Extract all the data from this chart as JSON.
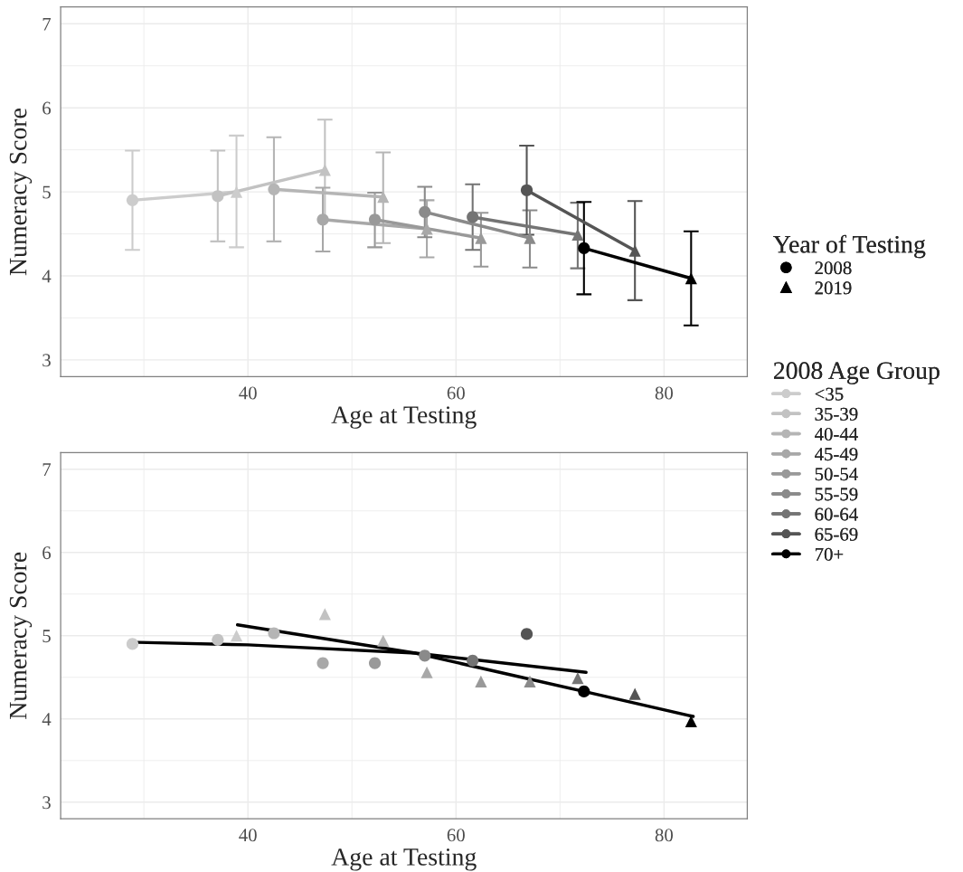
{
  "chart_data": [
    {
      "type": "line",
      "xlabel": "Age at Testing",
      "ylabel": "Numeracy Score",
      "xlim": [
        22,
        88
      ],
      "ylim": [
        2.8,
        7.2
      ],
      "xticks": [
        40,
        60,
        80
      ],
      "yticks": [
        3,
        4,
        5,
        6,
        7
      ],
      "grid": true,
      "legend": "right",
      "legend_title": [
        "Year of Testing",
        "2008 Age Group"
      ],
      "series": [
        {
          "name": "2008",
          "type": "scatter",
          "marker": "circle",
          "color": "#000000",
          "x": [
            28.9,
            37.1,
            42.5,
            47.2,
            52.2,
            57.0,
            61.6,
            66.8,
            72.3
          ],
          "values": [
            4.9,
            4.95,
            5.03,
            4.67,
            4.67,
            4.76,
            4.7,
            5.02,
            4.33
          ],
          "colors": [
            "#cccccc",
            "#c2c2c2",
            "#b5b5b5",
            "#a8a8a8",
            "#999999",
            "#8a8a8a",
            "#747474",
            "#555555",
            "#000000"
          ]
        },
        {
          "name": "2019",
          "type": "scatter",
          "marker": "triangle",
          "color": "#000000",
          "x": [
            38.9,
            47.4,
            53.0,
            57.2,
            62.4,
            67.1,
            71.7,
            77.2,
            82.6
          ],
          "values": [
            5.0,
            5.26,
            4.94,
            4.56,
            4.45,
            4.45,
            4.49,
            4.3,
            3.97
          ],
          "colors": [
            "#cccccc",
            "#c2c2c2",
            "#b5b5b5",
            "#a8a8a8",
            "#999999",
            "#8a8a8a",
            "#747474",
            "#555555",
            "#000000"
          ]
        },
        {
          "name": "<35",
          "color": "#cccccc",
          "x": [
            28.9,
            38.9
          ],
          "values": [
            4.9,
            5.0
          ],
          "errors": [
            [
              4.31,
              5.49
            ],
            [
              4.34,
              5.67
            ]
          ]
        },
        {
          "name": "35-39",
          "color": "#c2c2c2",
          "x": [
            37.1,
            47.4
          ],
          "values": [
            4.95,
            5.26
          ],
          "errors": [
            [
              4.41,
              5.49
            ],
            [
              4.66,
              5.86
            ]
          ]
        },
        {
          "name": "40-44",
          "color": "#b5b5b5",
          "x": [
            42.5,
            53.0
          ],
          "values": [
            5.03,
            4.94
          ],
          "errors": [
            [
              4.41,
              5.65
            ],
            [
              4.39,
              5.47
            ]
          ]
        },
        {
          "name": "45-49",
          "color": "#a8a8a8",
          "x": [
            47.2,
            57.2
          ],
          "values": [
            4.67,
            4.56
          ],
          "errors": [
            [
              4.29,
              5.05
            ],
            [
              4.22,
              4.9
            ]
          ]
        },
        {
          "name": "50-54",
          "color": "#999999",
          "x": [
            52.2,
            62.4
          ],
          "values": [
            4.67,
            4.45
          ],
          "errors": [
            [
              4.34,
              4.99
            ],
            [
              4.11,
              4.75
            ]
          ]
        },
        {
          "name": "55-59",
          "color": "#8a8a8a",
          "x": [
            57.0,
            67.1
          ],
          "values": [
            4.76,
            4.45
          ],
          "errors": [
            [
              4.46,
              5.06
            ],
            [
              4.1,
              4.78
            ]
          ]
        },
        {
          "name": "60-64",
          "color": "#747474",
          "x": [
            61.6,
            71.7
          ],
          "values": [
            4.7,
            4.49
          ],
          "errors": [
            [
              4.31,
              5.09
            ],
            [
              4.09,
              4.87
            ]
          ]
        },
        {
          "name": "65-69",
          "color": "#555555",
          "x": [
            66.8,
            77.2
          ],
          "values": [
            5.02,
            4.3
          ],
          "errors": [
            [
              4.49,
              5.55
            ],
            [
              3.71,
              4.89
            ]
          ]
        },
        {
          "name": "70+",
          "color": "#000000",
          "x": [
            72.3,
            82.6
          ],
          "values": [
            4.33,
            3.97
          ],
          "errors": [
            [
              3.78,
              4.88
            ],
            [
              3.41,
              4.53
            ]
          ]
        }
      ]
    },
    {
      "type": "scatter",
      "xlabel": "Age at Testing",
      "ylabel": "Numeracy Score",
      "xlim": [
        22,
        88
      ],
      "ylim": [
        2.8,
        7.2
      ],
      "xticks": [
        40,
        60,
        80
      ],
      "yticks": [
        3,
        4,
        5,
        6,
        7
      ],
      "grid": true,
      "series": [
        {
          "marker": "circle",
          "x": [
            28.9,
            37.1,
            42.5,
            47.2,
            52.2,
            57.0,
            61.6,
            66.8,
            72.3
          ],
          "values": [
            4.9,
            4.95,
            5.03,
            4.67,
            4.67,
            4.76,
            4.7,
            5.02,
            4.33
          ],
          "colors": [
            "#cccccc",
            "#c2c2c2",
            "#b5b5b5",
            "#a8a8a8",
            "#999999",
            "#8a8a8a",
            "#747474",
            "#555555",
            "#000000"
          ]
        },
        {
          "marker": "triangle",
          "x": [
            38.9,
            47.4,
            53.0,
            57.2,
            62.4,
            67.1,
            71.7,
            77.2,
            82.6
          ],
          "values": [
            5.0,
            5.26,
            4.94,
            4.56,
            4.45,
            4.45,
            4.49,
            4.3,
            3.97
          ],
          "colors": [
            "#cccccc",
            "#c2c2c2",
            "#b5b5b5",
            "#a8a8a8",
            "#999999",
            "#8a8a8a",
            "#747474",
            "#555555",
            "#000000"
          ]
        },
        {
          "type": "line",
          "color": "#000000",
          "x": [
            29.4,
            40.0,
            56.1,
            72.5
          ],
          "values": [
            4.92,
            4.89,
            4.79,
            4.56
          ]
        },
        {
          "type": "line",
          "color": "#000000",
          "x": [
            39.0,
            56.1,
            72.3,
            82.8
          ],
          "values": [
            5.13,
            4.79,
            4.33,
            4.03
          ]
        }
      ]
    }
  ]
}
